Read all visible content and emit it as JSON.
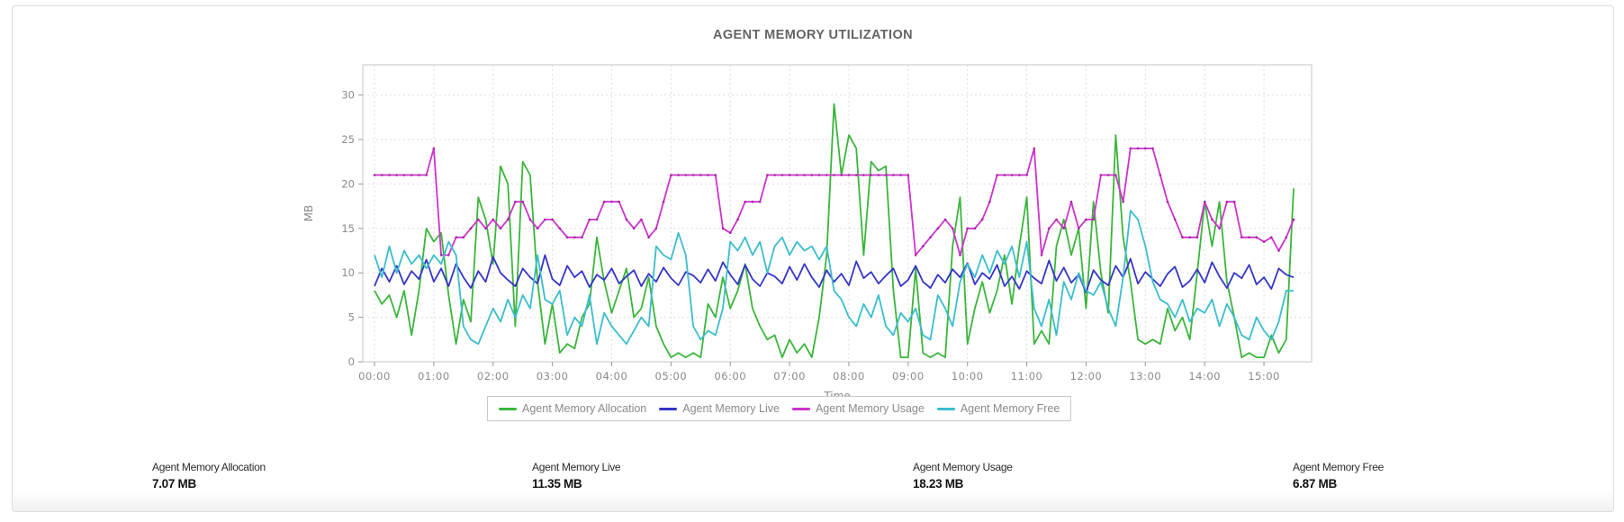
{
  "title": "AGENT MEMORY UTILIZATION",
  "chart_data": {
    "type": "line",
    "title": "AGENT MEMORY UTILIZATION",
    "xlabel": "Time",
    "ylabel": "MB",
    "ylim": [
      0,
      33.4
    ],
    "yticks": [
      0,
      5,
      10,
      15,
      20,
      25,
      30
    ],
    "grid": "dashed",
    "legend_position": "bottom",
    "x_start_hour": 0,
    "x_step_hours": 0.125,
    "xtick_hours": [
      0,
      1,
      2,
      3,
      4,
      5,
      6,
      7,
      8,
      9,
      10,
      11,
      12,
      13,
      14,
      15
    ],
    "xticklabels": [
      "00:00",
      "01:00",
      "02:00",
      "03:00",
      "04:00",
      "05:00",
      "06:00",
      "07:00",
      "08:00",
      "09:00",
      "10:00",
      "11:00",
      "12:00",
      "13:00",
      "14:00",
      "15:00"
    ],
    "series": [
      {
        "name": "Agent Memory Allocation",
        "color": "#3bb53b",
        "markers": false,
        "values": [
          8,
          6.5,
          7.5,
          5,
          8,
          3,
          8,
          15,
          13.5,
          14.5,
          7.5,
          2,
          7,
          4.5,
          18.5,
          16,
          11,
          22,
          20,
          4,
          22.5,
          21,
          9,
          2,
          6.5,
          1,
          2,
          1.5,
          5,
          6.5,
          14,
          9,
          5.5,
          8,
          10.5,
          5,
          6,
          9.5,
          4,
          2,
          0.5,
          1,
          0.5,
          1,
          0.5,
          6.5,
          5,
          9.5,
          6,
          8,
          11,
          6,
          4,
          2.5,
          3,
          0.5,
          2.5,
          1,
          2,
          0.5,
          5,
          12,
          29,
          21,
          25.5,
          24,
          12,
          22.5,
          21.5,
          22,
          8,
          0.5,
          0.5,
          10.5,
          1,
          0.5,
          1,
          0.5,
          13,
          18.5,
          2,
          6,
          9,
          5.5,
          8,
          12,
          6.5,
          13,
          18.5,
          2,
          3.5,
          2,
          13,
          16,
          12,
          15,
          6,
          18,
          10,
          5.5,
          25.5,
          14,
          9,
          2.5,
          2,
          2.5,
          2,
          6,
          3.5,
          5,
          2.5,
          10,
          18,
          13,
          18,
          9,
          5,
          0.5,
          1,
          0.5,
          0.5,
          3,
          1,
          2.5,
          19.5
        ]
      },
      {
        "name": "Agent Memory Live",
        "color": "#3535c8",
        "markers": false,
        "values": [
          8.5,
          10.5,
          9,
          10.8,
          8.7,
          10.2,
          9.3,
          11.5,
          9,
          10.5,
          8.5,
          11,
          9.5,
          8.3,
          10.2,
          9,
          11.8,
          10,
          9.2,
          8.5,
          10.5,
          9.5,
          8.8,
          12,
          9.3,
          8.6,
          10.8,
          9.5,
          10.2,
          8.4,
          9.8,
          9.2,
          10.5,
          8.8,
          9.6,
          10.3,
          8.5,
          9.9,
          9,
          10.6,
          9.4,
          8.6,
          10.1,
          9.7,
          8.9,
          10.4,
          9.1,
          11.2,
          9.8,
          8.7,
          10.9,
          9.3,
          8.5,
          10,
          9.6,
          8.8,
          10.7,
          9.2,
          11,
          9.5,
          8.4,
          10.3,
          9,
          9.9,
          8.6,
          11.3,
          9.4,
          10.1,
          8.8,
          9.7,
          10.5,
          8.5,
          9.2,
          10.8,
          9,
          8.3,
          9.8,
          8.9,
          10.4,
          9.5,
          11.1,
          8.7,
          10,
          9.3,
          10.9,
          8.5,
          9.6,
          8.2,
          10.2,
          9.4,
          8.8,
          11.4,
          9.1,
          10.6,
          8.9,
          9.8,
          7.8,
          10.3,
          9.2,
          8.6,
          10.8,
          9.5,
          11.6,
          8.8,
          10.1,
          9.3,
          8.5,
          9.9,
          10.7,
          8.4,
          9.1,
          10.4,
          8.9,
          11.2,
          9.6,
          8.3,
          10,
          9.4,
          10.9,
          8.7,
          9.5,
          8.2,
          10.5,
          9.8,
          9.5
        ]
      },
      {
        "name": "Agent Memory Usage",
        "color": "#cc33cc",
        "markers": true,
        "values": [
          21,
          21,
          21,
          21,
          21,
          21,
          21,
          21,
          24,
          12,
          12,
          14,
          14,
          15,
          16,
          15,
          16,
          15,
          16,
          18,
          18,
          16,
          15,
          16,
          16,
          15,
          14,
          14,
          14,
          16,
          16,
          18,
          18,
          18,
          16,
          15,
          16,
          14,
          15,
          18,
          21,
          21,
          21,
          21,
          21,
          21,
          21,
          15,
          14.5,
          16,
          18,
          18,
          18,
          21,
          21,
          21,
          21,
          21,
          21,
          21,
          21,
          21,
          21,
          21,
          21,
          21,
          21,
          21,
          21,
          21,
          21,
          21,
          21,
          12,
          13,
          14,
          15,
          16,
          15,
          12,
          15,
          15,
          16,
          18,
          21,
          21,
          21,
          21,
          21,
          24,
          12,
          15,
          16,
          15,
          18,
          15,
          16,
          16,
          21,
          21,
          21,
          18,
          24,
          24,
          24,
          24,
          21,
          18,
          16,
          14,
          14,
          14,
          18,
          16,
          15,
          18,
          18,
          14,
          14,
          14,
          13.5,
          14,
          12.5,
          14,
          16
        ]
      },
      {
        "name": "Agent Memory Free",
        "color": "#3bbdcd",
        "markers": false,
        "values": [
          12,
          9.5,
          13,
          10,
          12.5,
          11,
          12,
          10.5,
          12,
          11,
          13.5,
          12,
          4,
          2.5,
          2,
          4,
          6,
          4.5,
          7,
          5,
          7.5,
          6,
          12,
          7,
          6.5,
          8,
          3,
          5,
          4,
          7.5,
          2,
          5.5,
          4,
          3,
          2,
          3.5,
          5,
          4,
          13,
          12,
          11.5,
          14.5,
          12,
          4,
          2.5,
          3.5,
          3,
          6,
          13.5,
          12.5,
          14,
          12,
          13.5,
          10,
          13,
          14,
          12,
          13.5,
          12.5,
          13,
          11.5,
          13,
          8,
          7,
          5,
          4,
          6.5,
          5,
          7.5,
          4,
          3,
          5.5,
          4.5,
          6,
          3,
          2.5,
          7.5,
          6,
          4,
          9,
          11,
          9.5,
          12,
          10,
          12.5,
          11,
          13,
          9.5,
          13.5,
          6,
          4,
          7,
          3,
          9,
          7,
          10,
          8,
          7.5,
          9,
          6,
          4,
          9.5,
          17,
          16,
          13,
          9,
          7,
          6.5,
          5,
          7,
          4.5,
          6,
          5.5,
          7,
          4,
          6.5,
          5,
          3,
          2.5,
          5,
          3.5,
          2.5,
          4.5,
          8,
          8
        ]
      }
    ]
  },
  "summary": {
    "items": [
      {
        "label": "Agent Memory Allocation",
        "value": "7.07 MB"
      },
      {
        "label": "Agent Memory Live",
        "value": "11.35 MB"
      },
      {
        "label": "Agent Memory Usage",
        "value": "18.23 MB"
      },
      {
        "label": "Agent Memory Free",
        "value": "6.87 MB"
      }
    ]
  },
  "colors": {
    "title_text": "#646464",
    "axis_text": "#8a8a8a",
    "grid_line": "#dedede",
    "plot_border": "#cfcfcf",
    "card_border": "#dddddd"
  }
}
